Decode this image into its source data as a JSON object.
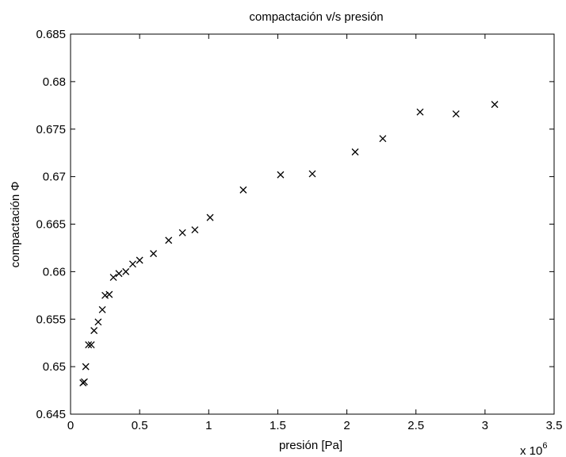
{
  "chart_data": {
    "type": "scatter",
    "title": "compactación v/s presión",
    "xlabel": "presión [Pa]",
    "ylabel": "compactación Φ",
    "x_multiplier": {
      "base": "x 10",
      "exponent": "6"
    },
    "xlim": [
      0,
      3.5
    ],
    "ylim": [
      0.645,
      0.685
    ],
    "xticks": [
      "0",
      "0.5",
      "1",
      "1.5",
      "2",
      "2.5",
      "3",
      "3.5"
    ],
    "yticks": [
      "0.645",
      "0.65",
      "0.655",
      "0.66",
      "0.665",
      "0.67",
      "0.675",
      "0.68",
      "0.685"
    ],
    "grid": false,
    "marker": "x",
    "marker_color": "#000000",
    "points": [
      [
        0.09,
        0.6483
      ],
      [
        0.1,
        0.6484
      ],
      [
        0.11,
        0.65
      ],
      [
        0.13,
        0.6523
      ],
      [
        0.15,
        0.6523
      ],
      [
        0.17,
        0.6538
      ],
      [
        0.2,
        0.6547
      ],
      [
        0.23,
        0.656
      ],
      [
        0.25,
        0.6575
      ],
      [
        0.28,
        0.6576
      ],
      [
        0.31,
        0.6594
      ],
      [
        0.35,
        0.6598
      ],
      [
        0.4,
        0.66
      ],
      [
        0.45,
        0.6608
      ],
      [
        0.5,
        0.6612
      ],
      [
        0.6,
        0.6619
      ],
      [
        0.71,
        0.6633
      ],
      [
        0.81,
        0.6641
      ],
      [
        0.9,
        0.6644
      ],
      [
        1.01,
        0.6657
      ],
      [
        1.25,
        0.6686
      ],
      [
        1.52,
        0.6702
      ],
      [
        1.75,
        0.6703
      ],
      [
        2.06,
        0.6726
      ],
      [
        2.26,
        0.674
      ],
      [
        2.53,
        0.6768
      ],
      [
        2.79,
        0.6766
      ],
      [
        3.07,
        0.6776
      ]
    ]
  }
}
